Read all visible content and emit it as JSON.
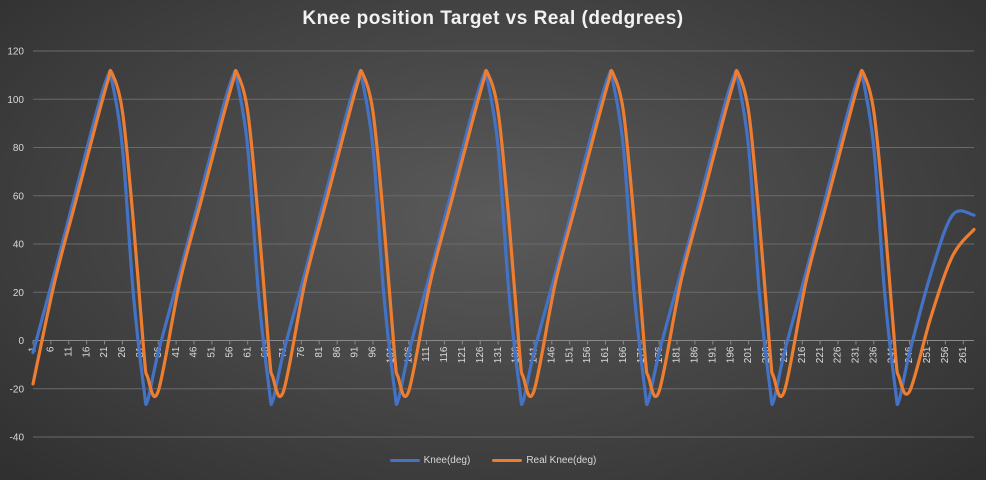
{
  "chart_data": {
    "type": "line",
    "title": "Knee position Target vs Real (dedgrees)",
    "xlabel": "",
    "ylabel": "",
    "ylim": [
      -40,
      120
    ],
    "yticks": [
      -40,
      -20,
      0,
      20,
      40,
      60,
      80,
      100,
      120
    ],
    "x_tick_labels": [
      "1",
      "6",
      "11",
      "16",
      "21",
      "26",
      "31",
      "36",
      "41",
      "46",
      "51",
      "56",
      "61",
      "66",
      "71",
      "76",
      "81",
      "86",
      "91",
      "96",
      "101",
      "106",
      "111",
      "116",
      "121",
      "126",
      "131",
      "136",
      "141",
      "146",
      "151",
      "156",
      "161",
      "166",
      "171",
      "176",
      "181",
      "186",
      "191",
      "196",
      "201",
      "206",
      "211",
      "216",
      "221",
      "226",
      "231",
      "236",
      "241",
      "246",
      "251",
      "256",
      "261"
    ],
    "grid": "horizontal",
    "legend_position": "bottom",
    "x": [
      1,
      7,
      13,
      19,
      22,
      23,
      26,
      29,
      32,
      33,
      36,
      42,
      48,
      54,
      57,
      58,
      61,
      64,
      67,
      68,
      71,
      77,
      83,
      89,
      92,
      93,
      96,
      99,
      102,
      103,
      106,
      112,
      118,
      124,
      127,
      128,
      131,
      134,
      137,
      138,
      141,
      147,
      153,
      159,
      162,
      163,
      166,
      169,
      172,
      173,
      176,
      182,
      188,
      194,
      197,
      198,
      201,
      204,
      207,
      208,
      211,
      217,
      223,
      229,
      232,
      233,
      236,
      239,
      242,
      243,
      246,
      252,
      258,
      264
    ],
    "series": [
      {
        "name": "Knee(deg)",
        "color": "#4472C4",
        "values": [
          -5,
          28,
          62,
          96,
          110,
          108,
          80,
          20,
          -20,
          -25,
          -5,
          28,
          62,
          96,
          110,
          108,
          80,
          20,
          -20,
          -25,
          -5,
          28,
          62,
          96,
          110,
          108,
          80,
          20,
          -20,
          -25,
          -5,
          28,
          62,
          96,
          110,
          108,
          80,
          20,
          -20,
          -25,
          -5,
          28,
          62,
          96,
          110,
          108,
          80,
          20,
          -20,
          -25,
          -5,
          28,
          62,
          96,
          110,
          108,
          80,
          20,
          -20,
          -25,
          -5,
          28,
          62,
          96,
          110,
          108,
          80,
          20,
          -20,
          -25,
          -5,
          28,
          52,
          52
        ]
      },
      {
        "name": "Real Knee(deg)",
        "color": "#ED7D31",
        "values": [
          -18,
          24,
          58,
          92,
          108,
          111,
          95,
          50,
          -5,
          -15,
          -21,
          24,
          58,
          92,
          108,
          111,
          95,
          50,
          -5,
          -15,
          -21,
          24,
          58,
          92,
          108,
          111,
          95,
          50,
          -5,
          -15,
          -21,
          24,
          58,
          92,
          108,
          111,
          95,
          50,
          -5,
          -15,
          -21,
          24,
          58,
          92,
          108,
          111,
          95,
          50,
          -5,
          -15,
          -21,
          24,
          58,
          92,
          108,
          111,
          95,
          50,
          -5,
          -15,
          -21,
          24,
          58,
          92,
          108,
          111,
          95,
          50,
          -5,
          -15,
          -21,
          10,
          35,
          46
        ]
      }
    ]
  }
}
